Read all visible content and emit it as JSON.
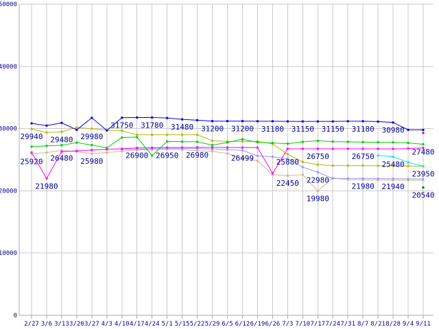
{
  "chart_data": {
    "type": "line",
    "title": "",
    "xlabel": "",
    "ylabel": "",
    "ylim": [
      0,
      50000
    ],
    "grid": true,
    "legend": "none",
    "background_color": "#ffffff",
    "grid_color": "#c9c9c9",
    "axis_color": "#aaaaaa",
    "text_color": "#000099",
    "x_tick_labels": [
      "2/27",
      "3/6",
      "3/13",
      "3/20",
      "3/27",
      "4/3",
      "4/10",
      "4/17",
      "4/24",
      "5/1",
      "5/15",
      "5/22",
      "5/29",
      "6/5",
      "6/12",
      "6/19",
      "6/26",
      "7/3",
      "7/10",
      "7/17",
      "7/24",
      "7/31",
      "8/7",
      "8/21",
      "8/28",
      "9/4",
      "9/11"
    ],
    "y_tick_labels": [
      "0",
      "10000",
      "20000",
      "30000",
      "40000",
      "50000"
    ],
    "y_tick_values": [
      0,
      10000,
      20000,
      30000,
      40000,
      50000
    ],
    "series": [
      {
        "name": "tan-line",
        "color": "#d2b48c",
        "values": [
          25920,
          26150,
          26480,
          26300,
          25980,
          26150,
          26350,
          26550,
          26650,
          26700,
          26600,
          26450,
          26350,
          26000,
          25300,
          24810,
          22590,
          22450,
          22590,
          19980,
          22060,
          21800,
          21760,
          21740,
          21720,
          21710,
          21700
        ]
      },
      {
        "name": "periwinkle-line",
        "color": "#9999ff",
        "values": [
          null,
          null,
          null,
          null,
          null,
          null,
          26650,
          26700,
          26740,
          26770,
          26800,
          26820,
          26700,
          26600,
          26499,
          25620,
          25460,
          25180,
          23800,
          22980,
          21990,
          21980,
          21980,
          21960,
          21940,
          21920,
          21900
        ]
      },
      {
        "name": "olive-line",
        "color": "#b8b800",
        "values": [
          29940,
          29360,
          29480,
          30180,
          29980,
          29730,
          29650,
          29000,
          29000,
          29000,
          29000,
          29000,
          28040,
          27930,
          27930,
          27950,
          27540,
          25880,
          24640,
          24200,
          24050,
          24050,
          24050,
          24020,
          24000,
          23980,
          23950
        ]
      },
      {
        "name": "cyan-line",
        "color": "#00e8e8",
        "values": [
          null,
          null,
          null,
          null,
          null,
          null,
          null,
          null,
          null,
          null,
          null,
          null,
          null,
          null,
          null,
          null,
          null,
          null,
          null,
          null,
          null,
          null,
          null,
          25670,
          25480,
          24580,
          23950
        ]
      },
      {
        "name": "green-line",
        "color": "#00cc00",
        "values": [
          27100,
          27220,
          27320,
          27750,
          27350,
          26900,
          28560,
          28630,
          25650,
          27930,
          27900,
          27880,
          27340,
          27770,
          28290,
          27800,
          27680,
          27570,
          27860,
          28040,
          27900,
          27860,
          27820,
          27800,
          27780,
          27700,
          27480
        ]
      },
      {
        "name": "magenta-line",
        "color": "#ff00ff",
        "values": [
          26150,
          21980,
          26300,
          26420,
          26550,
          26650,
          26750,
          26900,
          26920,
          26950,
          26960,
          26980,
          26970,
          26960,
          26950,
          26950,
          22800,
          26750,
          26750,
          26750,
          26750,
          26750,
          26750,
          26750,
          26740,
          26800,
          26900
        ]
      },
      {
        "name": "blue-line",
        "color": "#0000dd",
        "values": [
          30840,
          30480,
          30920,
          29800,
          31730,
          29700,
          31750,
          31780,
          31780,
          31700,
          31480,
          31350,
          31200,
          31200,
          31200,
          31180,
          31180,
          31160,
          31150,
          31150,
          31150,
          31180,
          31180,
          31120,
          30980,
          29790,
          29790
        ]
      },
      {
        "name": "darkgreen-point",
        "color": "#006600",
        "values": [
          null,
          null,
          null,
          null,
          null,
          null,
          null,
          null,
          null,
          null,
          null,
          null,
          null,
          null,
          null,
          null,
          null,
          null,
          null,
          null,
          null,
          null,
          null,
          null,
          null,
          null,
          20540
        ]
      },
      {
        "name": "red-point",
        "color": "#ee0000",
        "values": [
          null,
          null,
          null,
          null,
          null,
          null,
          null,
          null,
          null,
          null,
          null,
          null,
          null,
          null,
          null,
          null,
          null,
          null,
          null,
          null,
          null,
          null,
          null,
          null,
          null,
          null,
          29310
        ]
      }
    ],
    "annotations": [
      {
        "text": "29940",
        "series": "olive-line",
        "index": 0
      },
      {
        "text": "29480",
        "series": "olive-line",
        "index": 2
      },
      {
        "text": "29980",
        "series": "olive-line",
        "index": 4
      },
      {
        "text": "31750",
        "series": "blue-line",
        "index": 6
      },
      {
        "text": "31780",
        "series": "blue-line",
        "index": 8
      },
      {
        "text": "31480",
        "series": "blue-line",
        "index": 10
      },
      {
        "text": "31200",
        "series": "blue-line",
        "index": 12
      },
      {
        "text": "31200",
        "series": "blue-line",
        "index": 14
      },
      {
        "text": "31180",
        "series": "blue-line",
        "index": 16
      },
      {
        "text": "31150",
        "series": "blue-line",
        "index": 18
      },
      {
        "text": "31150",
        "series": "blue-line",
        "index": 20
      },
      {
        "text": "31180",
        "series": "blue-line",
        "index": 22
      },
      {
        "text": "30980",
        "series": "blue-line",
        "index": 24
      },
      {
        "text": "25920",
        "series": "tan-line",
        "index": 0
      },
      {
        "text": "21980",
        "series": "magenta-line",
        "index": 1
      },
      {
        "text": "26480",
        "series": "tan-line",
        "index": 2
      },
      {
        "text": "25980",
        "series": "tan-line",
        "index": 4
      },
      {
        "text": "26900",
        "series": "magenta-line",
        "index": 7
      },
      {
        "text": "26950",
        "series": "magenta-line",
        "index": 9
      },
      {
        "text": "26980",
        "series": "magenta-line",
        "index": 11
      },
      {
        "text": "26499",
        "series": "periwinkle-line",
        "index": 14
      },
      {
        "text": "25880",
        "series": "olive-line",
        "index": 17
      },
      {
        "text": "22450",
        "series": "tan-line",
        "index": 17
      },
      {
        "text": "26750",
        "series": "magenta-line",
        "index": 19
      },
      {
        "text": "22980",
        "series": "periwinkle-line",
        "index": 19
      },
      {
        "text": "19980",
        "series": "tan-line",
        "index": 19
      },
      {
        "text": "26750",
        "series": "magenta-line",
        "index": 22
      },
      {
        "text": "21980",
        "series": "periwinkle-line",
        "index": 22
      },
      {
        "text": "21940",
        "series": "periwinkle-line",
        "index": 24
      },
      {
        "text": "25480",
        "series": "cyan-line",
        "index": 24
      },
      {
        "text": "27480",
        "series": "green-line",
        "index": 26
      },
      {
        "text": "23950",
        "series": "olive-line",
        "index": 26
      },
      {
        "text": "20540",
        "series": "darkgreen-point",
        "index": 26
      }
    ]
  }
}
